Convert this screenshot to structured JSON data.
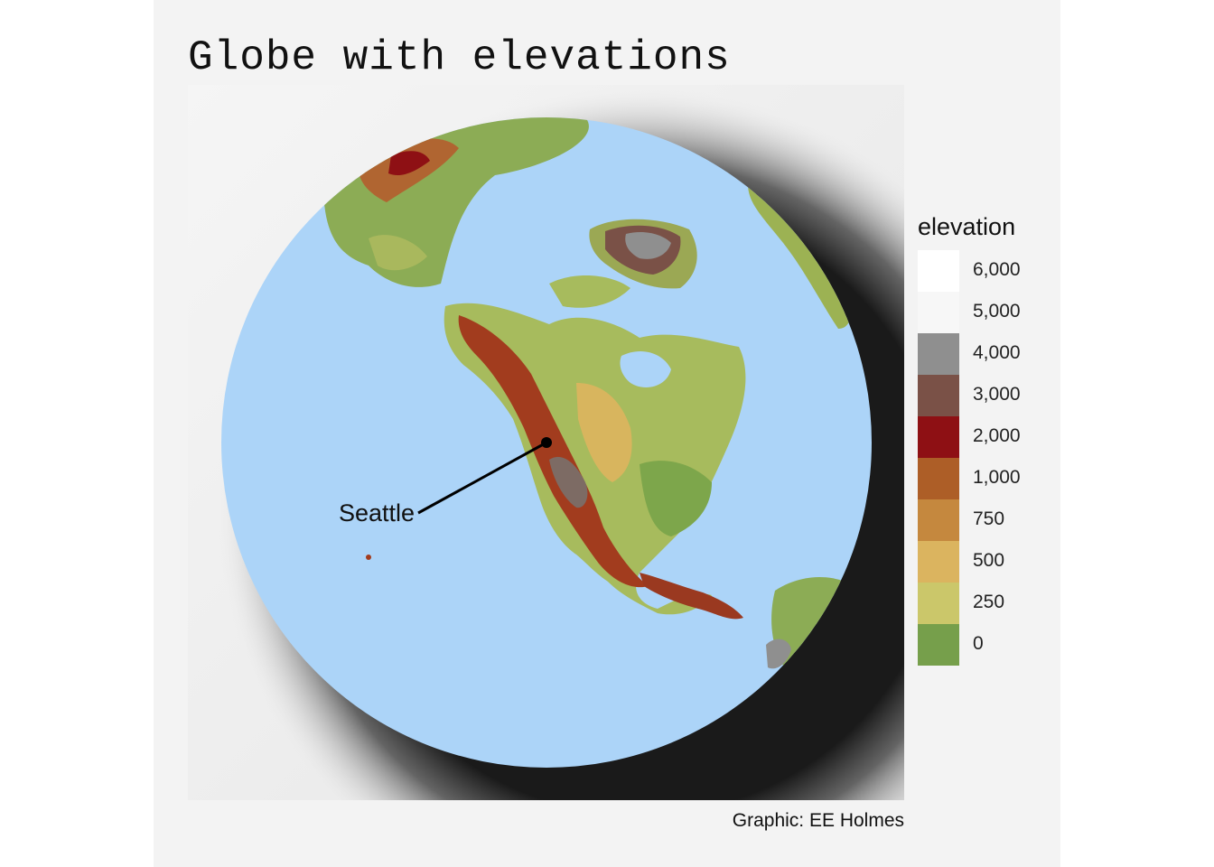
{
  "title": "Globe with elevations",
  "caption": "Graphic: EE Holmes",
  "annotation": {
    "label": "Seattle"
  },
  "legend": {
    "title": "elevation",
    "items": [
      {
        "label": "6,000",
        "color": "#ffffff"
      },
      {
        "label": "5,000",
        "color": "#f7f7f7"
      },
      {
        "label": "4,000",
        "color": "#8f8f8f"
      },
      {
        "label": "3,000",
        "color": "#7a5147"
      },
      {
        "label": "2,000",
        "color": "#8e1014"
      },
      {
        "label": "1,000",
        "color": "#ad5e27"
      },
      {
        "label": "750",
        "color": "#c5883e"
      },
      {
        "label": "500",
        "color": "#dbb45f"
      },
      {
        "label": "250",
        "color": "#cbc76a"
      },
      {
        "label": "0",
        "color": "#769f4b"
      }
    ]
  },
  "colors": {
    "ocean": "#acd4f8",
    "background": "#f3f3f3"
  }
}
